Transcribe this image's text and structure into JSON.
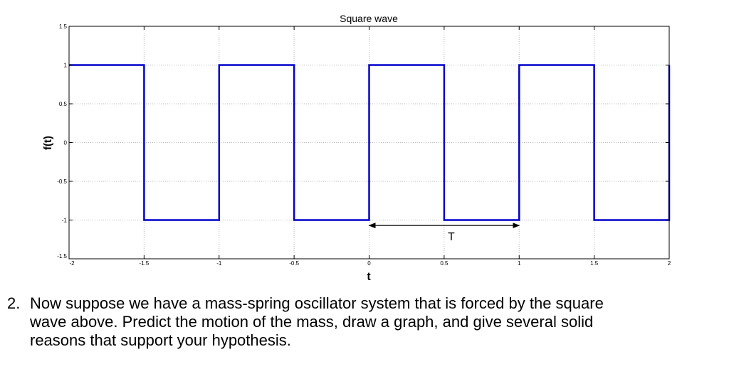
{
  "chart_data": {
    "type": "line",
    "title": "Square wave",
    "xlabel": "t",
    "ylabel": "f(t)",
    "xlim": [
      -2,
      2
    ],
    "ylim": [
      -1.5,
      1.5
    ],
    "x_ticks": [
      -2,
      -1.5,
      -1,
      -0.5,
      0,
      0.5,
      1,
      1.5,
      2
    ],
    "x_tick_labels": [
      "-2",
      "-1.5",
      "-1",
      "-0.5",
      "0",
      "0.5",
      "1",
      "1.5",
      "2"
    ],
    "y_ticks": [
      -1.5,
      -1,
      -0.5,
      0,
      0.5,
      1,
      1.5
    ],
    "y_tick_labels": [
      "-1.5",
      "-1",
      "-0.5",
      "0",
      "0.5",
      "1",
      "1.5"
    ],
    "grid": true,
    "series": [
      {
        "color": "#0000cc",
        "x": [
          -2,
          -1.5,
          -1.5,
          -1,
          -1,
          -0.5,
          -0.5,
          0,
          0,
          0.5,
          0.5,
          1,
          1,
          1.5,
          1.5,
          2,
          2
        ],
        "y": [
          1,
          1,
          -1,
          -1,
          1,
          1,
          -1,
          -1,
          1,
          1,
          -1,
          -1,
          1,
          1,
          -1,
          -1,
          1
        ]
      }
    ],
    "annotations": [
      {
        "type": "double-arrow",
        "label": "T",
        "x_from": 0,
        "x_to": 1,
        "y": -1.07
      }
    ]
  },
  "question": {
    "number": "2.",
    "line1": "Now suppose we have a mass-spring oscillator system that is forced by the square",
    "line2": "wave above.  Predict the motion of the mass, draw a graph, and give several solid",
    "line3": "reasons that support your hypothesis."
  }
}
